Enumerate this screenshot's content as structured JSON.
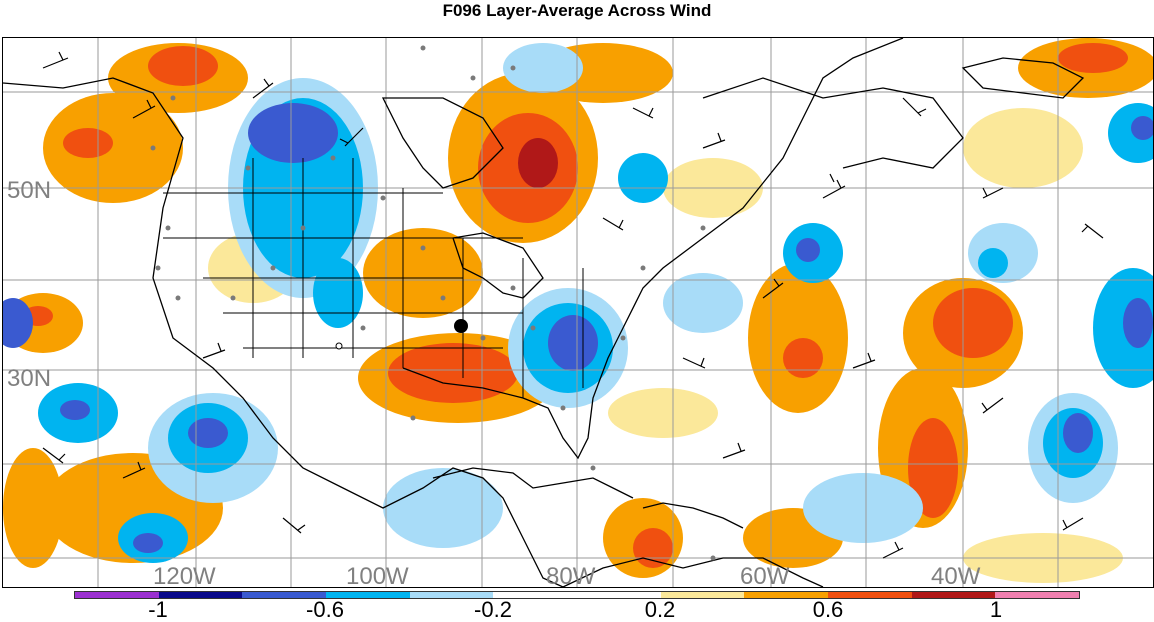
{
  "title": "F096 Layer-Average Across Wind",
  "map": {
    "lat_labels": [
      "50N",
      "30N"
    ],
    "lon_labels": [
      "120W",
      "100W",
      "80W",
      "60W",
      "40W"
    ]
  },
  "colorbar": {
    "colors": [
      "#9b30d0",
      "#0a0a8a",
      "#3a5ad0",
      "#00b4f0",
      "#a8dcf8",
      "#ffffff",
      "#ffffff",
      "#fbe89a",
      "#f8a000",
      "#f05010",
      "#b01818",
      "#f080b0"
    ],
    "tick_labels": [
      "-1",
      "-0.6",
      "-0.2",
      "0.2",
      "0.6",
      "1"
    ]
  }
}
